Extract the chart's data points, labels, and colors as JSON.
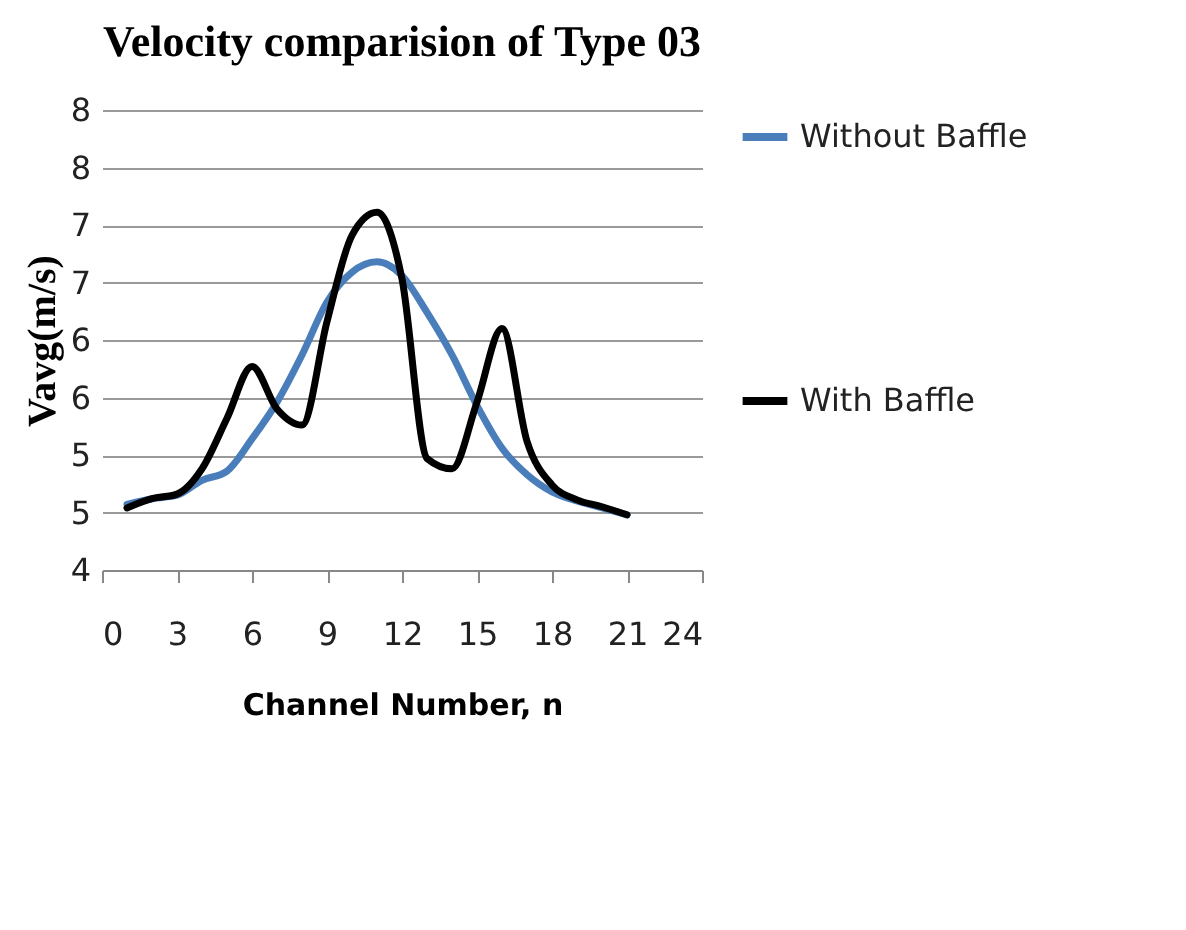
{
  "chart_data": {
    "type": "line",
    "title": "Velocity comparision of Type 03",
    "xlabel": "Channel Number, n",
    "ylabel": "Vavg(m/s)",
    "x": [
      1,
      2,
      3,
      4,
      5,
      6,
      7,
      8,
      9,
      10,
      11,
      12,
      13,
      14,
      15,
      16,
      17,
      18,
      19,
      20,
      21
    ],
    "series": [
      {
        "name": "Without Baffle",
        "color": "#4a7ebb",
        "values": [
          4.57,
          4.62,
          4.65,
          4.78,
          4.86,
          5.14,
          5.46,
          5.87,
          6.33,
          6.59,
          6.68,
          6.56,
          6.24,
          5.87,
          5.43,
          5.06,
          4.83,
          4.68,
          4.6,
          4.54,
          4.48
        ]
      },
      {
        "name": "With Baffle",
        "color": "#000000",
        "values": [
          4.54,
          4.62,
          4.66,
          4.88,
          5.32,
          5.77,
          5.4,
          5.26,
          6.16,
          6.91,
          7.11,
          6.53,
          4.97,
          4.88,
          5.46,
          6.1,
          5.12,
          4.74,
          4.61,
          4.55,
          4.48
        ]
      }
    ],
    "xlim": [
      0,
      24
    ],
    "xticks": [
      0,
      3,
      6,
      9,
      12,
      15,
      18,
      21,
      24
    ],
    "ylim": [
      4,
      8
    ],
    "yticks": [
      4,
      {
        "value": 4.5,
        "label": "5"
      },
      5,
      {
        "value": 5.5,
        "label": "6"
      },
      6,
      {
        "value": 6.5,
        "label": "7"
      },
      7,
      {
        "value": 7.5,
        "label": "8"
      },
      8
    ],
    "grid": "y",
    "legend": "right",
    "line_style": "solid",
    "marker": "none"
  }
}
